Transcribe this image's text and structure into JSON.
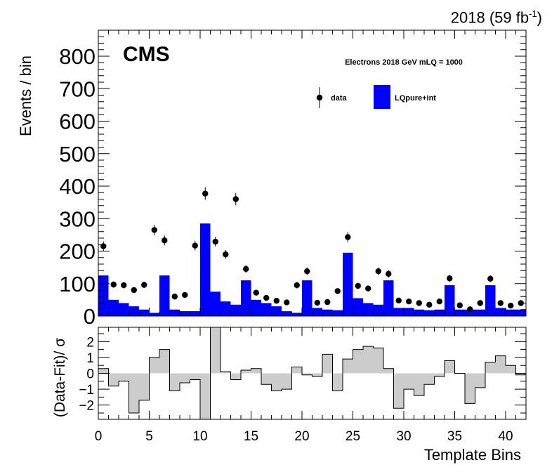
{
  "lumi_label": "2018 (59 fb",
  "lumi_exp": "-1",
  "lumi_close": ")",
  "chart_data": [
    {
      "type": "bar",
      "panel": "main",
      "experiment_label": "CMS",
      "annotation": "Electrons 2018  GeV mLQ = 1000",
      "ylabel": "Events / bin",
      "xlabel": "",
      "xlim": [
        0,
        42
      ],
      "ylim": [
        0,
        880
      ],
      "yticks": [
        0,
        100,
        200,
        300,
        400,
        500,
        600,
        700,
        800
      ],
      "x_bins": [
        0,
        1,
        2,
        3,
        4,
        5,
        6,
        7,
        8,
        9,
        10,
        11,
        12,
        13,
        14,
        15,
        16,
        17,
        18,
        19,
        20,
        21,
        22,
        23,
        24,
        25,
        26,
        27,
        28,
        29,
        30,
        31,
        32,
        33,
        34,
        35,
        36,
        37,
        38,
        39,
        40,
        41
      ],
      "legend": {
        "placement": "top-right",
        "entries": [
          "data",
          "LQpure+int"
        ]
      },
      "series": [
        {
          "name": "LQpure+int",
          "style": "filled histogram",
          "color": "#0000ff",
          "values": [
            125,
            50,
            40,
            30,
            20,
            10,
            125,
            20,
            15,
            15,
            285,
            75,
            45,
            35,
            110,
            50,
            40,
            30,
            15,
            10,
            110,
            25,
            20,
            18,
            195,
            55,
            40,
            35,
            110,
            25,
            25,
            20,
            18,
            20,
            95,
            20,
            20,
            20,
            95,
            25,
            20,
            20
          ]
        },
        {
          "name": "data",
          "style": "points with error bars",
          "color": "#000000",
          "values": [
            215,
            97,
            95,
            80,
            96,
            265,
            233,
            60,
            65,
            217,
            377,
            229,
            190,
            360,
            145,
            72,
            56,
            47,
            42,
            95,
            138,
            41,
            43,
            77,
            243,
            93,
            85,
            138,
            130,
            48,
            45,
            40,
            35,
            45,
            116,
            33,
            21,
            40,
            115,
            40,
            32,
            40
          ]
        }
      ]
    },
    {
      "type": "bar",
      "panel": "ratio",
      "ylabel": "(Data-Fit)/ σ",
      "xlabel": "Template Bins",
      "xlim": [
        0,
        42
      ],
      "ylim": [
        -2.9,
        2.9
      ],
      "yticks": [
        -2,
        -1,
        0,
        1,
        2
      ],
      "xticks": [
        0,
        5,
        10,
        15,
        20,
        25,
        30,
        35,
        40
      ],
      "series": [
        {
          "style": "step histogram, grey fill",
          "color": "#cccccc",
          "values": [
            0.3,
            -0.8,
            -0.5,
            -2.5,
            -1.7,
            1.0,
            1.5,
            -1.1,
            -0.6,
            -0.4,
            -2.9,
            3.0,
            0.1,
            -0.4,
            0.2,
            0.3,
            -0.7,
            -1.1,
            -1.0,
            0.4,
            -0.1,
            -0.2,
            1.2,
            -1.1,
            0.9,
            1.5,
            1.7,
            1.6,
            0.3,
            -2.2,
            -1.0,
            -1.4,
            -0.7,
            -0.2,
            0.8,
            0.0,
            -1.9,
            -0.9,
            0.7,
            1.1,
            0.5,
            -0.1
          ]
        }
      ]
    }
  ]
}
